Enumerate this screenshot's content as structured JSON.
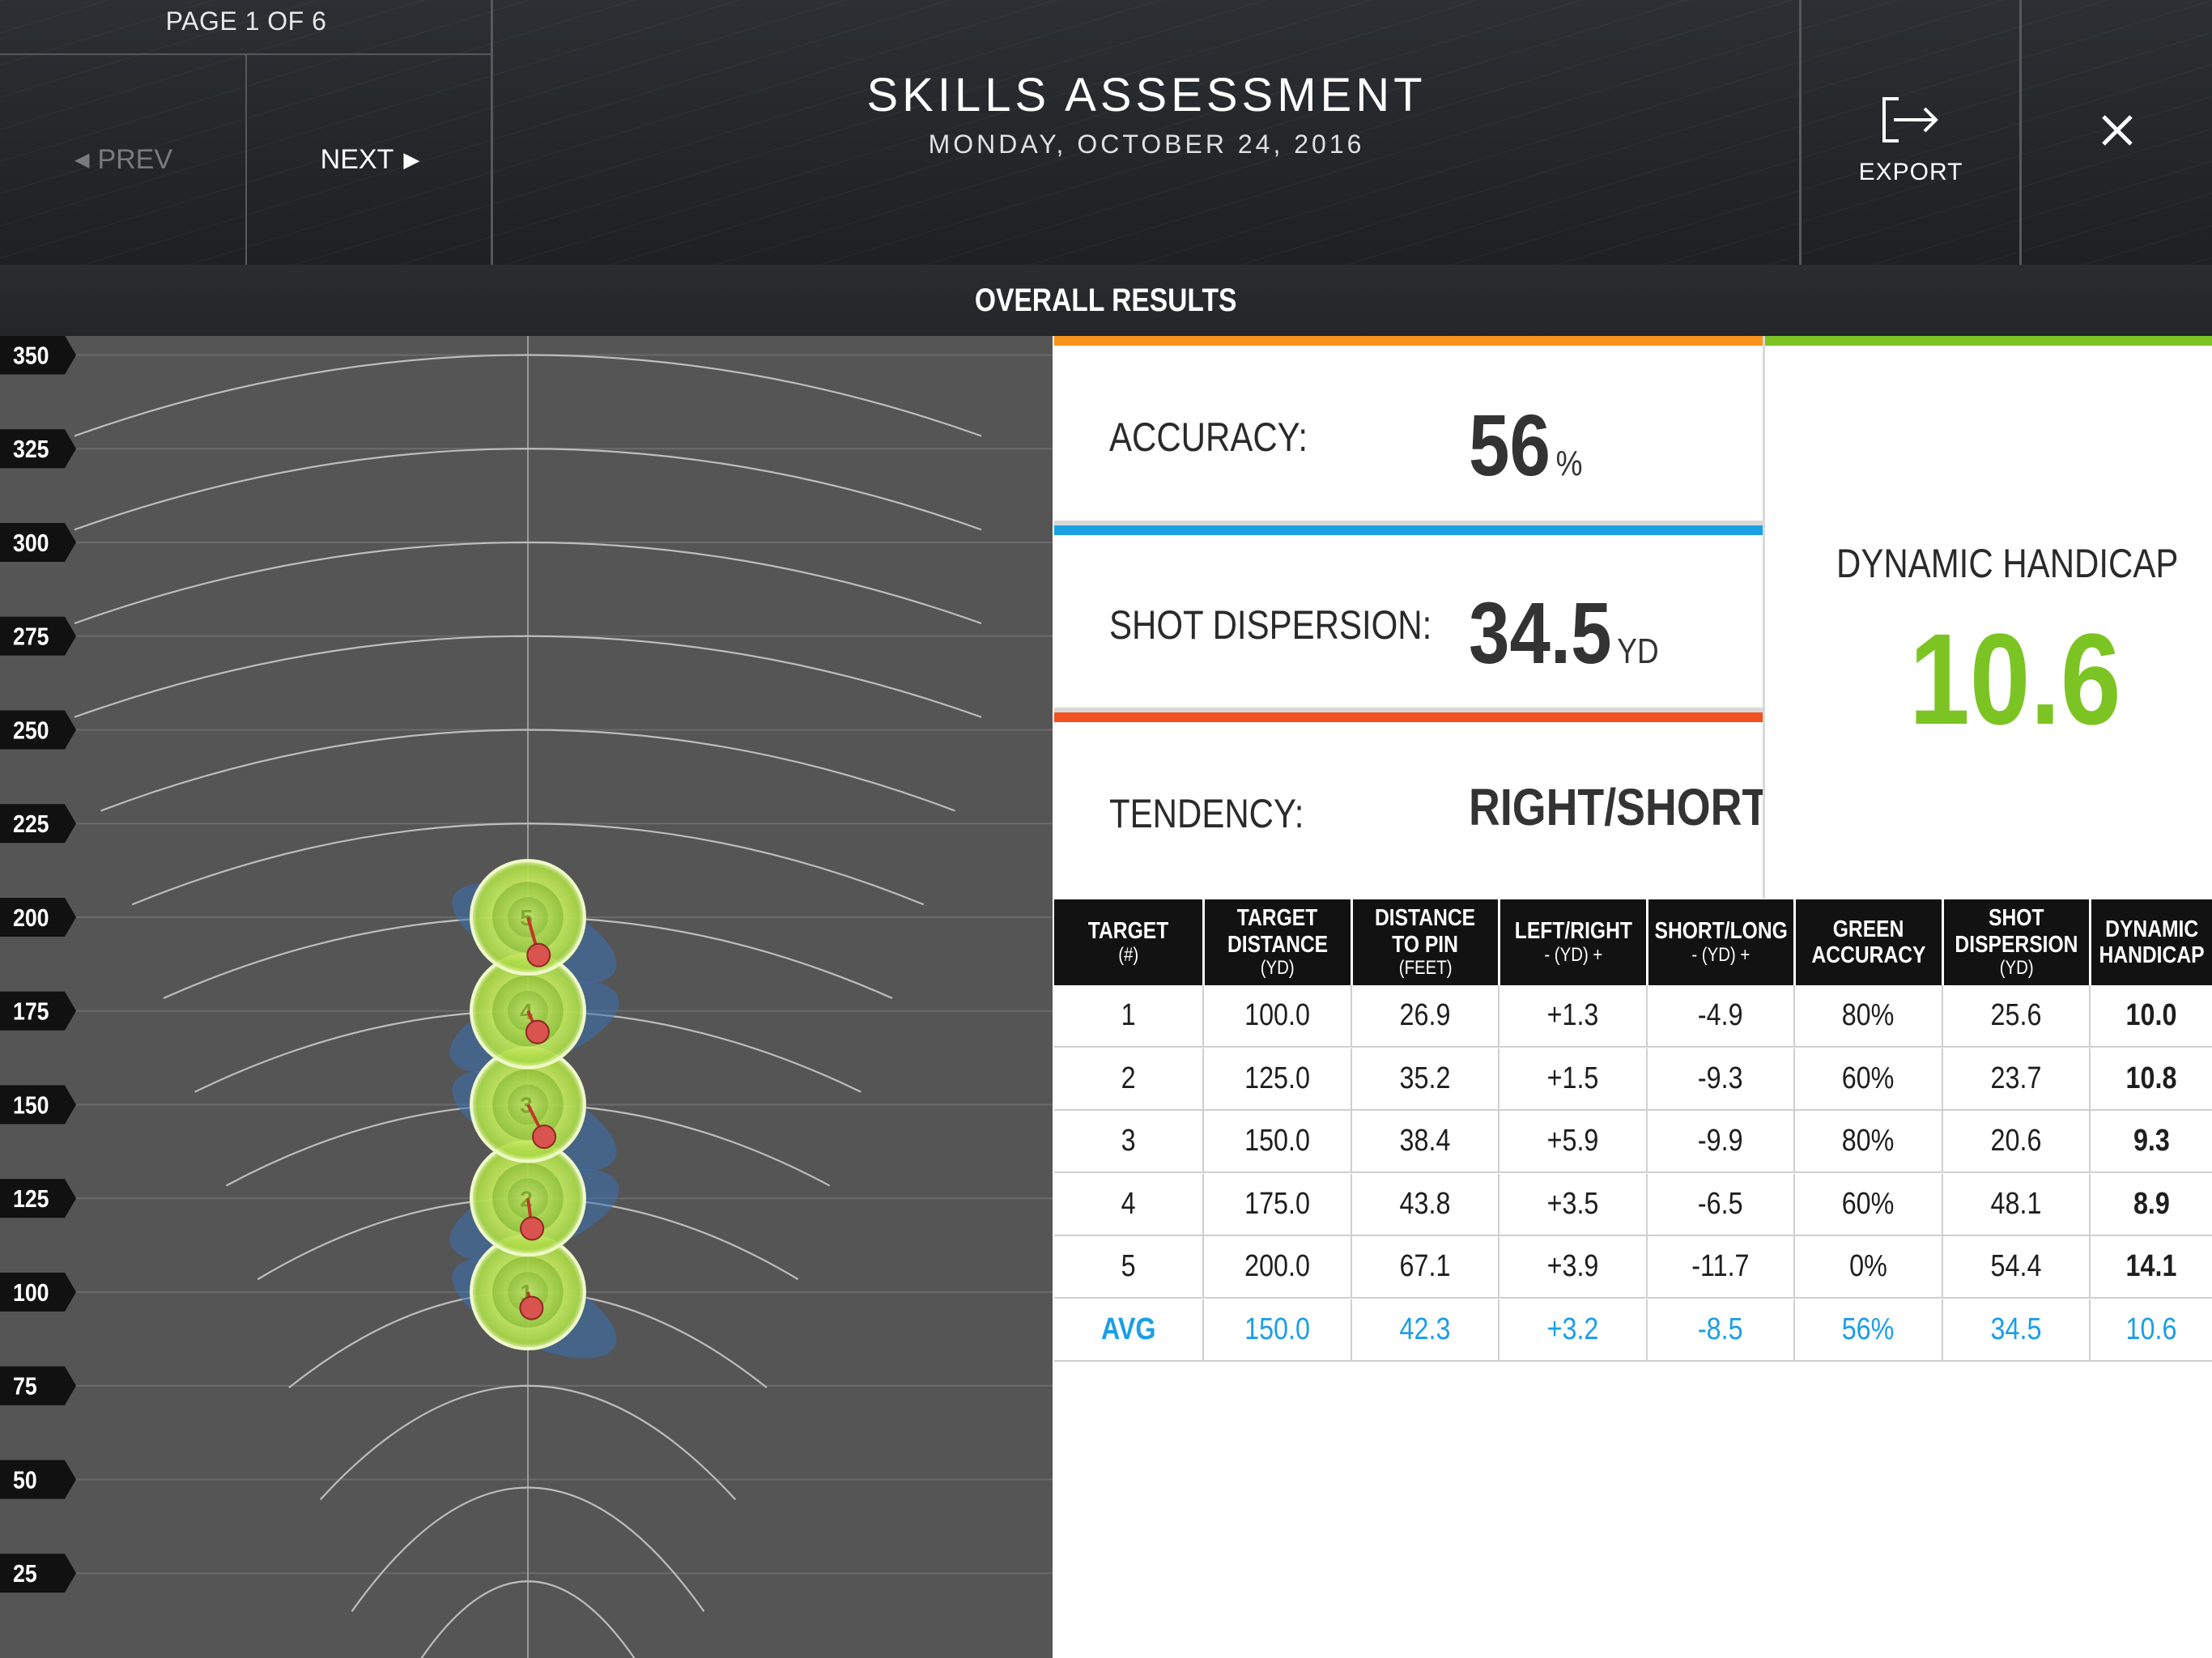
{
  "header": {
    "page_indicator": "PAGE 1 OF 6",
    "prev_label": "PREV",
    "next_label": "NEXT",
    "title": "SKILLS ASSESSMENT",
    "subtitle": "MONDAY, OCTOBER 24, 2016",
    "export_label": "EXPORT",
    "close_icon": "close-icon",
    "export_icon": "export-icon"
  },
  "section_title": "OVERALL RESULTS",
  "range": {
    "yardage_labels": [
      "350",
      "325",
      "300",
      "275",
      "250",
      "225",
      "200",
      "175",
      "150",
      "125",
      "100",
      "75",
      "50",
      "25"
    ],
    "targets": [
      {
        "label": "1",
        "target_distance": 100,
        "left_right": 1.3,
        "short_long": -4.9
      },
      {
        "label": "2",
        "target_distance": 125,
        "left_right": 1.5,
        "short_long": -9.3
      },
      {
        "label": "3",
        "target_distance": 150,
        "left_right": 5.9,
        "short_long": -9.9
      },
      {
        "label": "4",
        "target_distance": 175,
        "left_right": 3.5,
        "short_long": -6.5
      },
      {
        "label": "5",
        "target_distance": 200,
        "left_right": 3.9,
        "short_long": -11.7
      }
    ],
    "colors": {
      "background": "#555555",
      "target": "#a6d93a",
      "shot": "#d9534f",
      "dispersion": "#3a6fb3",
      "lines": "#8a8a8a"
    }
  },
  "stats": {
    "accuracy": {
      "label": "ACCURACY:",
      "value": "56",
      "unit": "%",
      "color": "#f7941d"
    },
    "dispersion": {
      "label": "SHOT DISPERSION:",
      "value": "34.5",
      "unit": "YD",
      "color": "#1ba1e2"
    },
    "tendency": {
      "label": "TENDENCY:",
      "value": "RIGHT/SHORT",
      "color": "#f0521f"
    },
    "handicap": {
      "label": "DYNAMIC HANDICAP",
      "value": "10.6",
      "color": "#7cc423"
    }
  },
  "table": {
    "headers": [
      {
        "l1": "TARGET",
        "l2": "",
        "sub": "(#)"
      },
      {
        "l1": "TARGET",
        "l2": "DISTANCE",
        "sub": "(YD)"
      },
      {
        "l1": "DISTANCE",
        "l2": "TO PIN",
        "sub": "(FEET)"
      },
      {
        "l1": "LEFT/RIGHT",
        "l2": "",
        "sub": "- (YD) +"
      },
      {
        "l1": "SHORT/LONG",
        "l2": "",
        "sub": "- (YD) +"
      },
      {
        "l1": "GREEN",
        "l2": "ACCURACY",
        "sub": ""
      },
      {
        "l1": "SHOT",
        "l2": "DISPERSION",
        "sub": "(YD)"
      },
      {
        "l1": "DYNAMIC",
        "l2": "HANDICAP",
        "sub": ""
      }
    ],
    "rows": [
      [
        "1",
        "100.0",
        "26.9",
        "+1.3",
        "-4.9",
        "80%",
        "25.6",
        "10.0"
      ],
      [
        "2",
        "125.0",
        "35.2",
        "+1.5",
        "-9.3",
        "60%",
        "23.7",
        "10.8"
      ],
      [
        "3",
        "150.0",
        "38.4",
        "+5.9",
        "-9.9",
        "80%",
        "20.6",
        "9.3"
      ],
      [
        "4",
        "175.0",
        "43.8",
        "+3.5",
        "-6.5",
        "60%",
        "48.1",
        "8.9"
      ],
      [
        "5",
        "200.0",
        "67.1",
        "+3.9",
        "-11.7",
        "0%",
        "54.4",
        "14.1"
      ]
    ],
    "avg_row": [
      "AVG",
      "150.0",
      "42.3",
      "+3.2",
      "-8.5",
      "56%",
      "34.5",
      "10.6"
    ]
  }
}
